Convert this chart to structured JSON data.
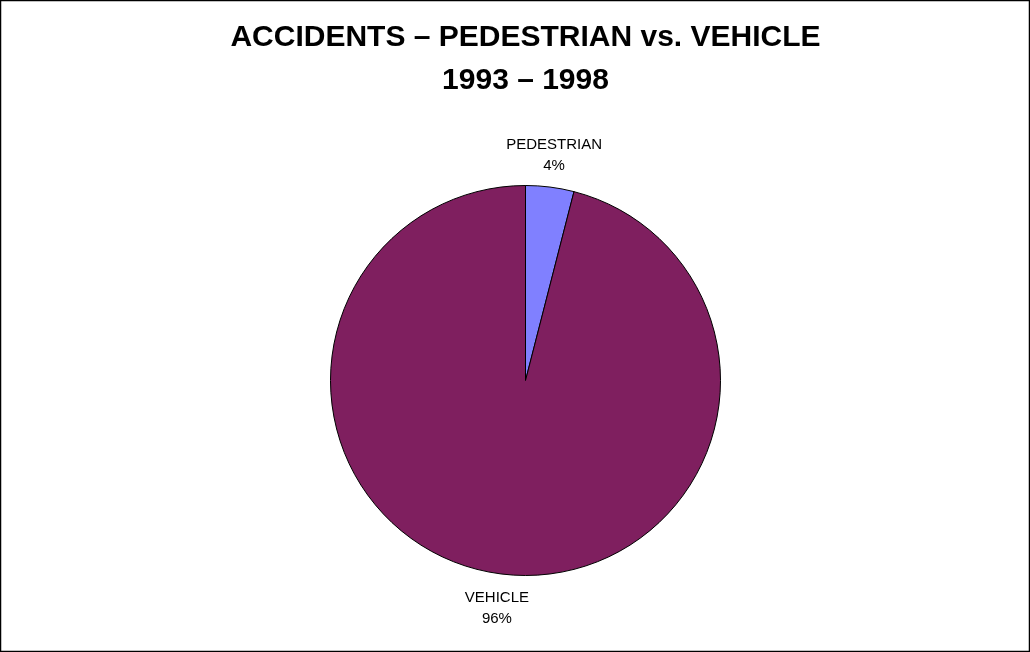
{
  "chart_data": {
    "type": "pie",
    "title": "ACCIDENTS – PEDESTRIAN vs. VEHICLE\n1993 – 1998",
    "categories": [
      "PEDESTRIAN",
      "VEHICLE"
    ],
    "values": [
      4,
      96
    ],
    "colors": [
      "#8080ff",
      "#7f1f5f"
    ],
    "value_labels": [
      "4%",
      "96%"
    ]
  }
}
